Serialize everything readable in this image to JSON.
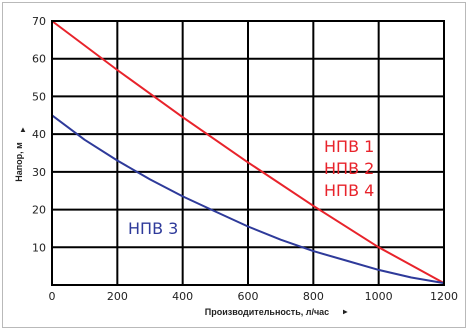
{
  "chart_data": {
    "type": "line",
    "title": "",
    "xlabel": "Производительность, л/час",
    "ylabel": "Напор, м",
    "xlim": [
      0,
      1200
    ],
    "ylim": [
      0,
      70
    ],
    "x_ticks": [
      "0",
      "200",
      "400",
      "600",
      "800",
      "1000",
      "1200"
    ],
    "y_ticks": [
      "10",
      "20",
      "30",
      "40",
      "50",
      "60",
      "70"
    ],
    "grid": true,
    "axis_arrow_symbol": "▲",
    "series": [
      {
        "labels": [
          "НПВ 1",
          "НПВ 2",
          "НПВ 4"
        ],
        "color": "#e8232b",
        "x": [
          0,
          200,
          400,
          600,
          800,
          1000,
          1200
        ],
        "y": [
          70,
          57,
          44.5,
          32.5,
          21,
          10,
          0.5
        ]
      },
      {
        "labels": [
          "НПВ 3"
        ],
        "color": "#2e3a9a",
        "x": [
          0,
          100,
          200,
          300,
          400,
          500,
          600,
          700,
          800,
          900,
          1000,
          1100,
          1200
        ],
        "y": [
          45,
          38.5,
          33,
          28,
          23.5,
          19.5,
          15.5,
          12,
          9,
          6.5,
          4,
          2,
          0.5
        ]
      }
    ]
  }
}
